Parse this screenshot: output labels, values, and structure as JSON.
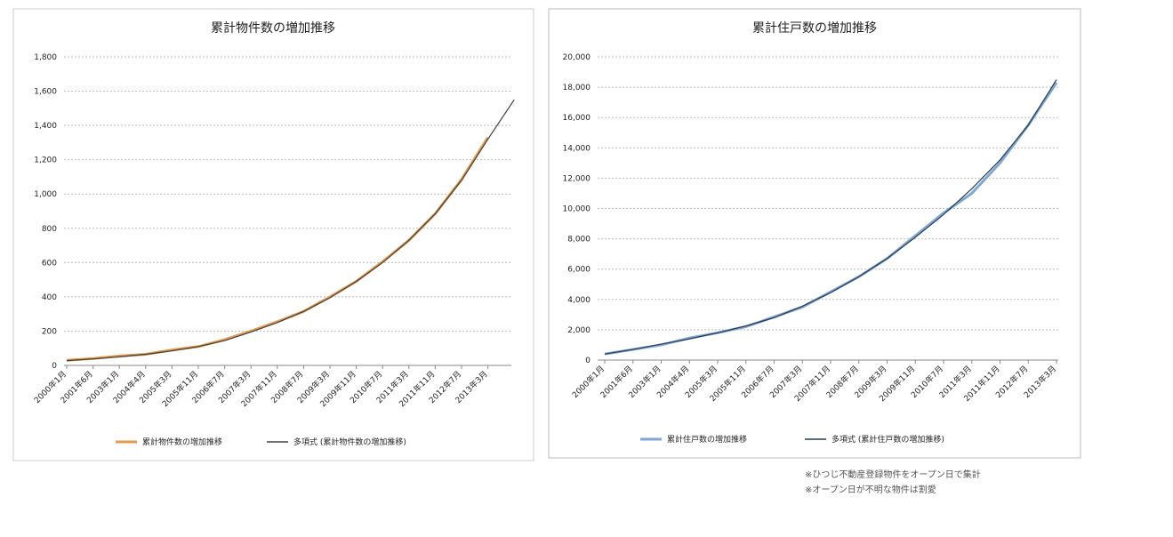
{
  "chart_data": [
    {
      "type": "line",
      "title": "累計物件数の増加推移",
      "categories": [
        "2000年1月",
        "2001年6月",
        "2003年1月",
        "2004年4月",
        "2005年3月",
        "2005年11月",
        "2006年7月",
        "2007年3月",
        "2007年11月",
        "2008年7月",
        "2009年3月",
        "2009年11月",
        "2010年7月",
        "2011年3月",
        "2011年11月",
        "2012年7月",
        "2013年3月",
        null
      ],
      "series": [
        {
          "name": "累計物件数の増加推移",
          "color": "#e39a4f",
          "values": [
            30,
            40,
            55,
            65,
            90,
            110,
            150,
            200,
            255,
            315,
            400,
            490,
            605,
            730,
            885,
            1085,
            1330,
            null
          ]
        },
        {
          "name": "多項式 (累計物件数の増加推移)",
          "color": "#404040",
          "values": [
            28,
            38,
            50,
            65,
            85,
            110,
            145,
            195,
            250,
            315,
            395,
            490,
            600,
            730,
            885,
            1080,
            1320,
            1550
          ]
        }
      ],
      "ylim": [
        0,
        1800
      ],
      "yticks": [
        0,
        200,
        400,
        600,
        800,
        {
          "value": 1000,
          "label": "1,000"
        },
        {
          "value": 1200,
          "label": "1,200"
        },
        {
          "value": 1400,
          "label": "1,400"
        },
        {
          "value": 1600,
          "label": "1,600"
        },
        {
          "value": 1800,
          "label": "1,800"
        }
      ],
      "grid": true,
      "legend": "bottom"
    },
    {
      "type": "line",
      "title": "累計住戸数の増加推移",
      "categories": [
        "2000年1月",
        "2001年6月",
        "2003年1月",
        "2004年4月",
        "2005年3月",
        "2005年11月",
        "2006年7月",
        "2007年3月",
        "2007年11月",
        "2008年7月",
        "2009年3月",
        "2009年11月",
        "2010年7月",
        "2011年3月",
        "2011年11月",
        "2012年7月",
        "2013年3月"
      ],
      "series": [
        {
          "name": "累計住戸数の増加推移",
          "color": "#7fa8d2",
          "values": [
            400,
            700,
            1000,
            1450,
            1800,
            2200,
            2850,
            3500,
            4500,
            5500,
            6700,
            8200,
            9700,
            11000,
            13000,
            15500,
            18300
          ]
        },
        {
          "name": "多項式 (累計住戸数の増加推移)",
          "color": "#2b3a52",
          "values": [
            400,
            700,
            1050,
            1400,
            1800,
            2250,
            2800,
            3550,
            4450,
            5500,
            6700,
            8100,
            9600,
            11300,
            13200,
            15500,
            18500
          ]
        }
      ],
      "ylim": [
        0,
        20000
      ],
      "yticks": [
        0,
        {
          "value": 2000,
          "label": "2,000"
        },
        {
          "value": 4000,
          "label": "4,000"
        },
        {
          "value": 6000,
          "label": "6,000"
        },
        {
          "value": 8000,
          "label": "8,000"
        },
        {
          "value": 10000,
          "label": "10,000"
        },
        {
          "value": 12000,
          "label": "12,000"
        },
        {
          "value": 14000,
          "label": "14,000"
        },
        {
          "value": 16000,
          "label": "16,000"
        },
        {
          "value": 18000,
          "label": "18,000"
        },
        {
          "value": 20000,
          "label": "20,000"
        }
      ],
      "grid": true,
      "legend": "bottom"
    }
  ],
  "notes": [
    "※ひつじ不動産登録物件をオープン日で集計",
    "※オープン日が不明な物件は割愛"
  ]
}
